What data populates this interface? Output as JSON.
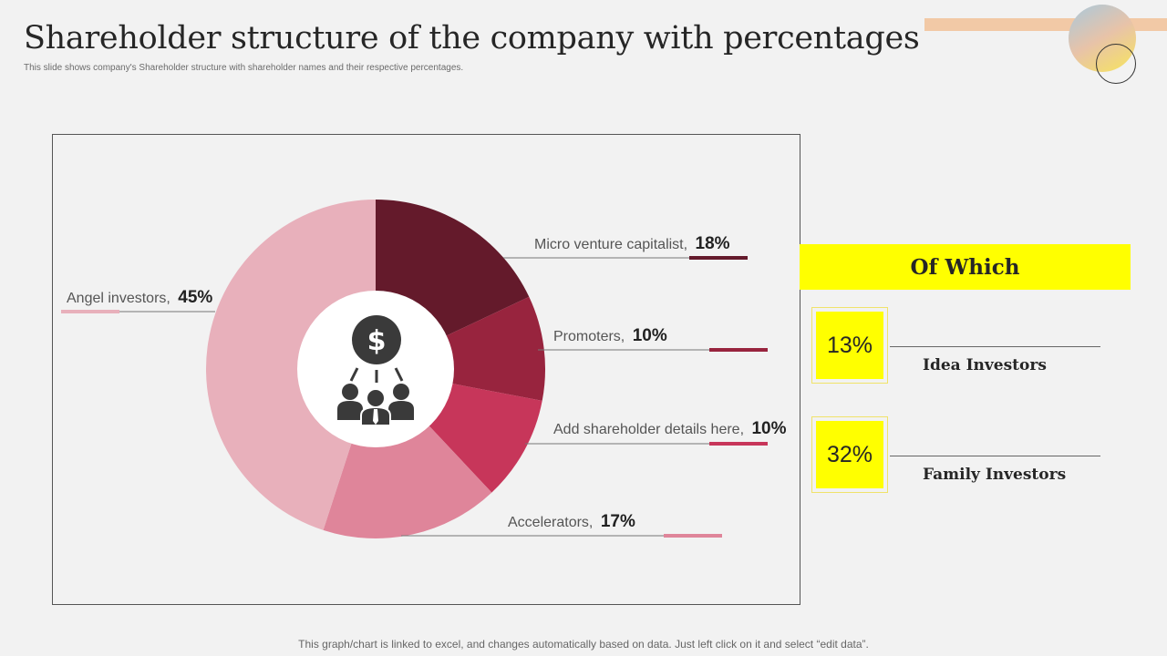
{
  "title": "Shareholder structure of the company with percentages",
  "subtitle": "This slide shows company's Shareholder structure with shareholder names and their respective percentages.",
  "footer": "This graph/chart is linked to excel, and changes automatically based on data. Just left click on it and select “edit data”.",
  "center_icon": "investor-group-dollar-icon",
  "chart_data": {
    "type": "pie",
    "donut": true,
    "series": [
      {
        "name": "Micro venture  capitalist,",
        "value": 18,
        "value_label": "18%",
        "color": "#641a2b"
      },
      {
        "name": "Promoters,",
        "value": 10,
        "value_label": "10%",
        "color": "#98243e"
      },
      {
        "name": "Add shareholder details here,",
        "value": 10,
        "value_label": "10%",
        "color": "#c7365a"
      },
      {
        "name": "Accelerators,",
        "value": 17,
        "value_label": "17%",
        "color": "#df859a"
      },
      {
        "name": "Angel investors,",
        "value": 45,
        "value_label": "45%",
        "color": "#e8b0bb"
      }
    ]
  },
  "of_which": {
    "heading": "Of Which",
    "items": [
      {
        "pct": "13%",
        "label": "Idea Investors"
      },
      {
        "pct": "32%",
        "label": "Family Investors"
      }
    ]
  }
}
